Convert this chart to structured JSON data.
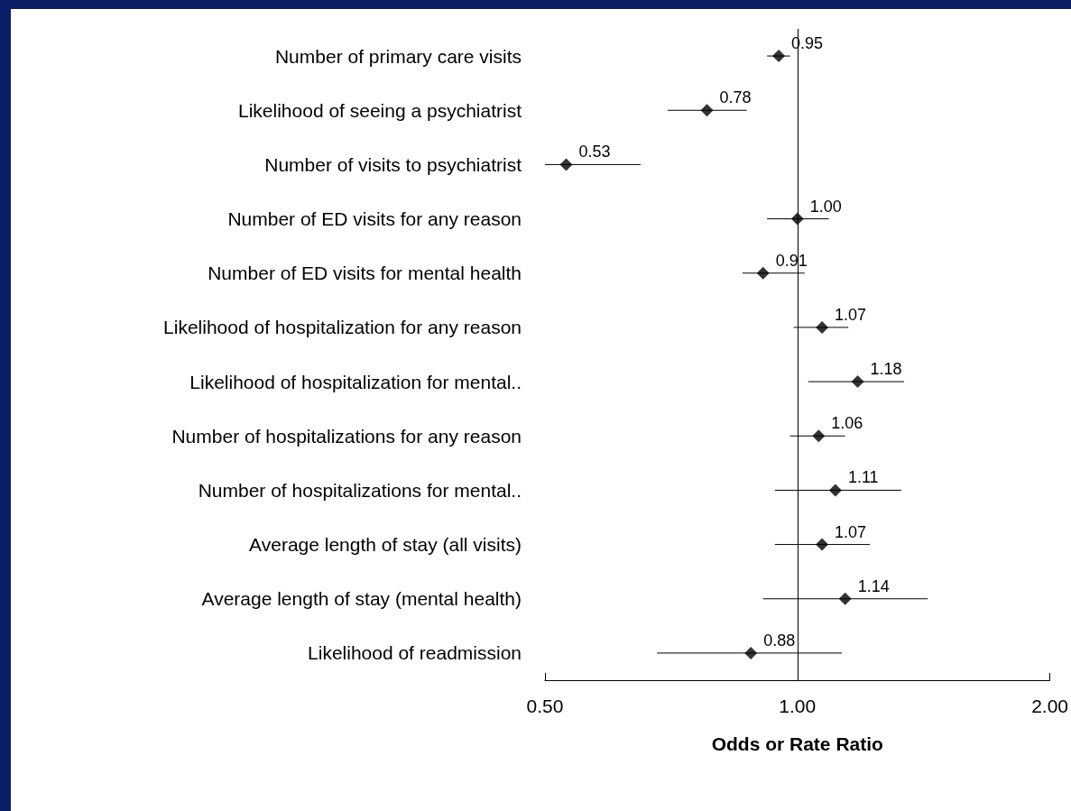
{
  "chart_data": {
    "type": "scatter",
    "orientation": "horizontal",
    "xlabel": "Odds or Rate Ratio",
    "categories": [
      "Number of primary care visits",
      "Likelihood of seeing a psychiatrist",
      "Number of visits to psychiatrist",
      "Number of ED visits for any reason",
      "Number of ED visits for mental health",
      "Likelihood of hospitalization for any reason",
      "Likelihood of hospitalization for mental..",
      "Number of hospitalizations for any reason",
      "Number of hospitalizations for mental..",
      "Average length of stay (all visits)",
      "Average length of stay (mental health)",
      "Likelihood of readmission"
    ],
    "values": [
      0.95,
      0.78,
      0.53,
      1.0,
      0.91,
      1.07,
      1.18,
      1.06,
      1.11,
      1.07,
      1.14,
      0.88
    ],
    "errors": [
      [
        0.92,
        0.98
      ],
      [
        0.7,
        0.87
      ],
      [
        0.5,
        0.65
      ],
      [
        0.92,
        1.09
      ],
      [
        0.86,
        1.02
      ],
      [
        0.99,
        1.15
      ],
      [
        1.03,
        1.34
      ],
      [
        0.98,
        1.14
      ],
      [
        0.94,
        1.33
      ],
      [
        0.94,
        1.22
      ],
      [
        0.91,
        1.43
      ],
      [
        0.68,
        1.13
      ]
    ],
    "value_labels": [
      "0.95",
      "0.78",
      "0.53",
      "1.00",
      "0.91",
      "1.07",
      "1.18",
      "1.06",
      "1.11",
      "1.07",
      "1.14",
      "0.88"
    ],
    "color": "#000000",
    "marker": "diamond",
    "log": "x",
    "xlim": [
      0.5,
      2
    ],
    "xticks": [
      {
        "value": 0.5,
        "label": "0.50"
      },
      {
        "value": 1,
        "label": "1.00"
      },
      {
        "value": 2,
        "label": "2.00"
      }
    ],
    "ref_lines": [
      {
        "axis": "x",
        "value": 1,
        "color": "#000000"
      }
    ],
    "grid": false
  }
}
